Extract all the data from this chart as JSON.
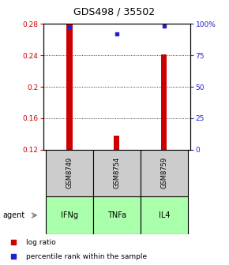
{
  "title": "GDS498 / 35502",
  "samples": [
    "GSM8749",
    "GSM8754",
    "GSM8759"
  ],
  "agents": [
    "IFNg",
    "TNFa",
    "IL4"
  ],
  "log_ratios": [
    0.28,
    0.138,
    0.241
  ],
  "percentile_ranks": [
    97,
    92,
    98
  ],
  "ylim_left": [
    0.12,
    0.28
  ],
  "ylim_right": [
    0,
    100
  ],
  "yticks_left": [
    0.12,
    0.16,
    0.2,
    0.24,
    0.28
  ],
  "yticks_right": [
    0,
    25,
    50,
    75,
    100
  ],
  "ytick_labels_left": [
    "0.12",
    "0.16",
    "0.2",
    "0.24",
    "0.28"
  ],
  "ytick_labels_right": [
    "0",
    "25",
    "50",
    "75",
    "100%"
  ],
  "bar_color": "#cc0000",
  "dot_color": "#2222cc",
  "sample_box_color": "#cccccc",
  "agent_box_color": "#aaffaa",
  "left_axis_color": "#cc0000",
  "right_axis_color": "#2222cc",
  "legend_bar_label": "log ratio",
  "legend_dot_label": "percentile rank within the sample",
  "bar_width": 0.12,
  "x_positions": [
    0,
    1,
    2
  ]
}
